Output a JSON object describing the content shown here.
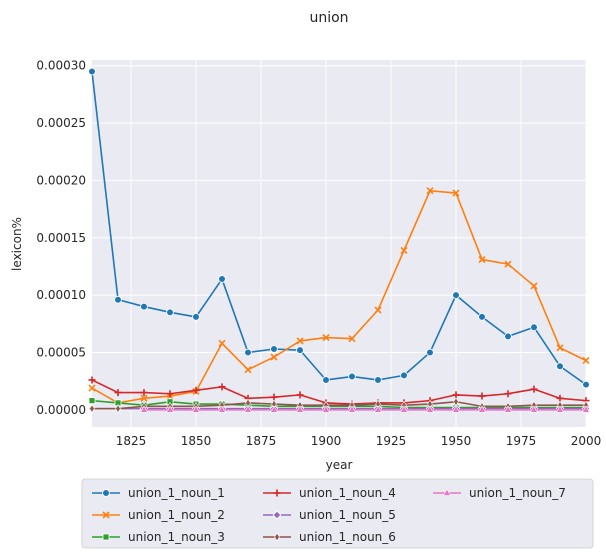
{
  "chart_data": {
    "type": "line",
    "title": "union",
    "xlabel": "year",
    "ylabel": "lexicon%",
    "xlim": [
      1810,
      2000
    ],
    "ylim": [
      -1.5e-05,
      0.000305
    ],
    "xticks": [
      1825,
      1850,
      1875,
      1900,
      1925,
      1950,
      1975,
      2000
    ],
    "yticks": [
      0.0,
      5e-05,
      0.0001,
      0.00015,
      0.0002,
      0.00025,
      0.0003
    ],
    "ytick_labels": [
      "0.00000",
      "0.00005",
      "0.00010",
      "0.00015",
      "0.00020",
      "0.00025",
      "0.00030"
    ],
    "grid": true,
    "legend_position": "bottom",
    "x": [
      1810,
      1820,
      1830,
      1840,
      1850,
      1860,
      1870,
      1880,
      1890,
      1900,
      1910,
      1920,
      1930,
      1940,
      1950,
      1960,
      1970,
      1980,
      1990,
      2000
    ],
    "series": [
      {
        "name": "union_1_noun_1",
        "color": "#1f77b4",
        "marker": "circle",
        "values": [
          0.000295,
          9.6e-05,
          9e-05,
          8.5e-05,
          8.1e-05,
          0.000114,
          5e-05,
          5.3e-05,
          5.2e-05,
          2.6e-05,
          2.9e-05,
          2.6e-05,
          3e-05,
          5e-05,
          0.0001,
          8.1e-05,
          6.4e-05,
          7.2e-05,
          3.8e-05,
          2.2e-05
        ]
      },
      {
        "name": "union_1_noun_2",
        "color": "#ff7f0e",
        "marker": "x",
        "values": [
          1.9e-05,
          6e-06,
          1e-05,
          1.2e-05,
          1.6e-05,
          5.8e-05,
          3.5e-05,
          4.6e-05,
          6e-05,
          6.3e-05,
          6.2e-05,
          8.7e-05,
          0.000139,
          0.000191,
          0.000189,
          0.000131,
          0.000127,
          0.000108,
          5.4e-05,
          4.3e-05
        ]
      },
      {
        "name": "union_1_noun_3",
        "color": "#2ca02c",
        "marker": "square",
        "values": [
          8e-06,
          6e-06,
          4e-06,
          7e-06,
          5e-06,
          5e-06,
          4e-06,
          3e-06,
          3e-06,
          3e-06,
          3e-06,
          3e-06,
          2e-06,
          2e-06,
          2e-06,
          2e-06,
          2e-06,
          2e-06,
          2e-06,
          2e-06
        ]
      },
      {
        "name": "union_1_noun_4",
        "color": "#d62728",
        "marker": "plus",
        "values": [
          2.6e-05,
          1.5e-05,
          1.5e-05,
          1.4e-05,
          1.7e-05,
          2e-05,
          1e-05,
          1.1e-05,
          1.3e-05,
          6e-06,
          5e-06,
          6e-06,
          6e-06,
          8e-06,
          1.3e-05,
          1.2e-05,
          1.4e-05,
          1.8e-05,
          1e-05,
          8e-06
        ]
      },
      {
        "name": "union_1_noun_5",
        "color": "#9467bd",
        "marker": "diamond",
        "values": [
          1e-06,
          1e-06,
          1e-06,
          1e-06,
          1e-06,
          1e-06,
          1e-06,
          1e-06,
          1e-06,
          1e-06,
          1e-06,
          1e-06,
          1e-06,
          1e-06,
          1e-06,
          1e-06,
          1e-06,
          1e-06,
          1e-06,
          1e-06
        ]
      },
      {
        "name": "union_1_noun_6",
        "color": "#8c564b",
        "marker": "thin_diamond",
        "values": [
          1e-06,
          1e-06,
          3e-06,
          3e-06,
          3e-06,
          4e-06,
          6e-06,
          5e-06,
          4e-06,
          4e-06,
          4e-06,
          5e-06,
          4e-06,
          5e-06,
          7e-06,
          3e-06,
          3e-06,
          4e-06,
          4e-06,
          4e-06
        ]
      },
      {
        "name": "union_1_noun_7",
        "color": "#e377c2",
        "marker": "triangle",
        "values": [
          null,
          null,
          0.0,
          0.0,
          0.0,
          0.0,
          0.0,
          0.0,
          0.0,
          0.0,
          0.0,
          0.0,
          0.0,
          0.0,
          0.0,
          0.0,
          0.0,
          0.0,
          0.0,
          0.0
        ]
      }
    ]
  }
}
